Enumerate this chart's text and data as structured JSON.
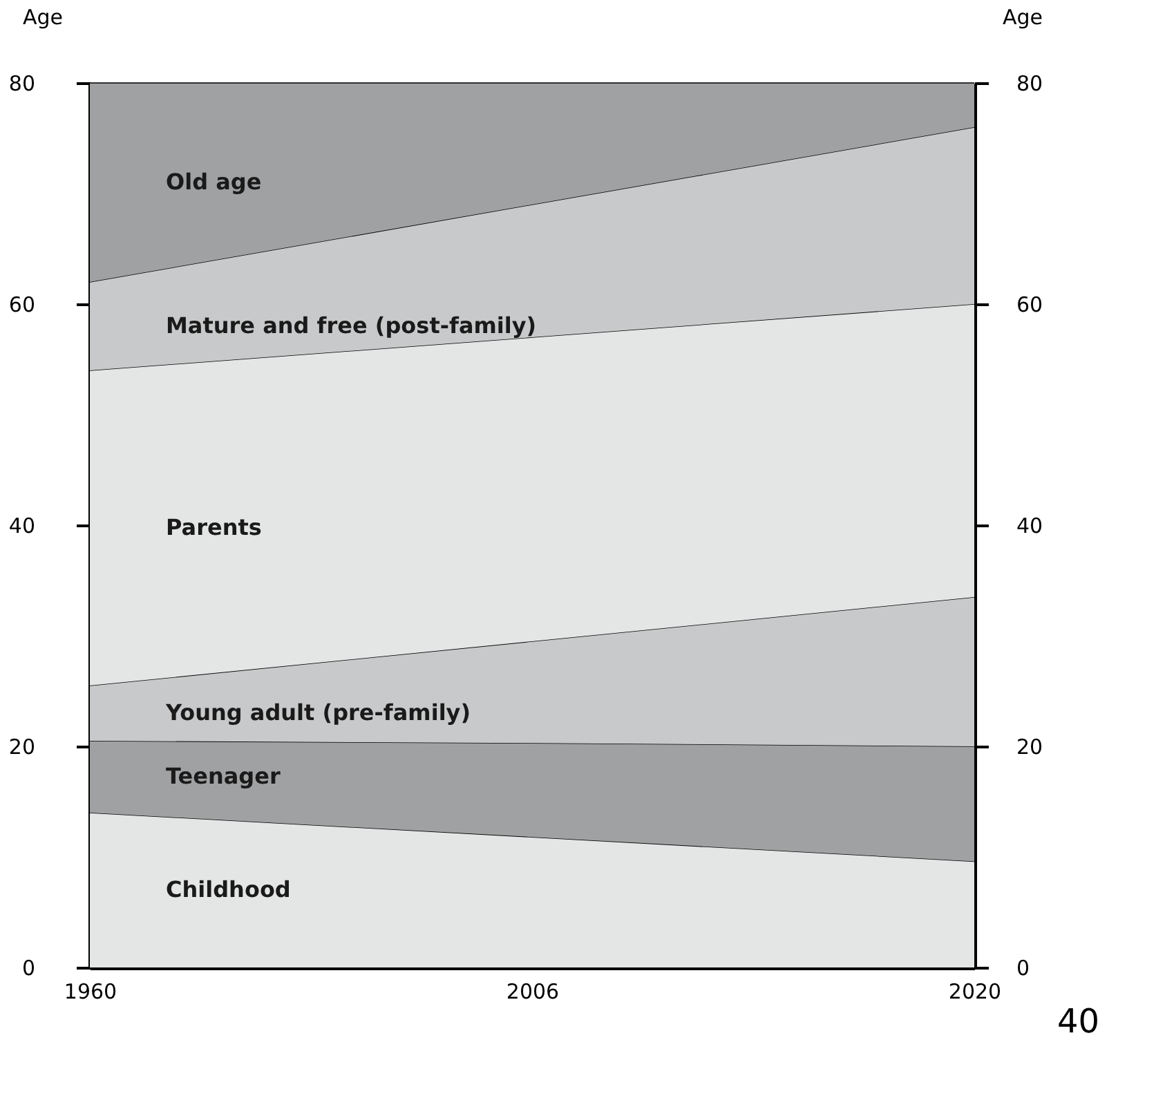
{
  "chart_data": {
    "type": "area",
    "stacked": true,
    "ylabel": "Age",
    "y2label": "Age",
    "categories": [
      "1960",
      "2006",
      "2020"
    ],
    "series": [
      {
        "name": "Childhood",
        "color": "#e4e5e5",
        "values": [
          14,
          11.8,
          9.6
        ]
      },
      {
        "name": "Teenager",
        "color": "#a0a1a3",
        "values": [
          6.5,
          8.5,
          10.4
        ]
      },
      {
        "name": "Young adult (pre-family)",
        "color": "#c8c9ca",
        "values": [
          5,
          9.2,
          13.5
        ]
      },
      {
        "name": "Parents",
        "color": "#e4e5e5",
        "values": [
          28.5,
          27.5,
          26.5
        ]
      },
      {
        "name": "Mature and free (post-family)",
        "color": "#c8c9ca",
        "values": [
          8,
          12,
          16
        ]
      },
      {
        "name": "Old age",
        "color": "#a0a1a3",
        "values": [
          18,
          11,
          4
        ]
      }
    ],
    "ylim": [
      0,
      80
    ],
    "yticks": [
      0,
      20,
      40,
      60,
      80
    ],
    "y2lim": [
      0,
      80
    ],
    "y2ticks": [
      0,
      20,
      40,
      60,
      80
    ],
    "legend": false,
    "annotations": [
      "40"
    ]
  }
}
